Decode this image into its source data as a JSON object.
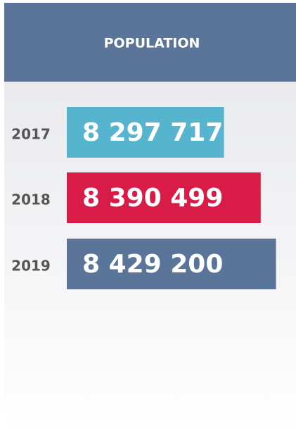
{
  "chart_data": {
    "type": "bar",
    "orientation": "horizontal",
    "title": "POPULATION",
    "categories": [
      "2017",
      "2018",
      "2019"
    ],
    "values": [
      8297717,
      8390499,
      8429200
    ],
    "value_labels": [
      "8 297 717",
      "8 390 499",
      "8 429 200"
    ],
    "colors": [
      "#56b4cf",
      "#d81b47",
      "#5a7599"
    ],
    "xlim": [
      7900000,
      8430000
    ]
  }
}
